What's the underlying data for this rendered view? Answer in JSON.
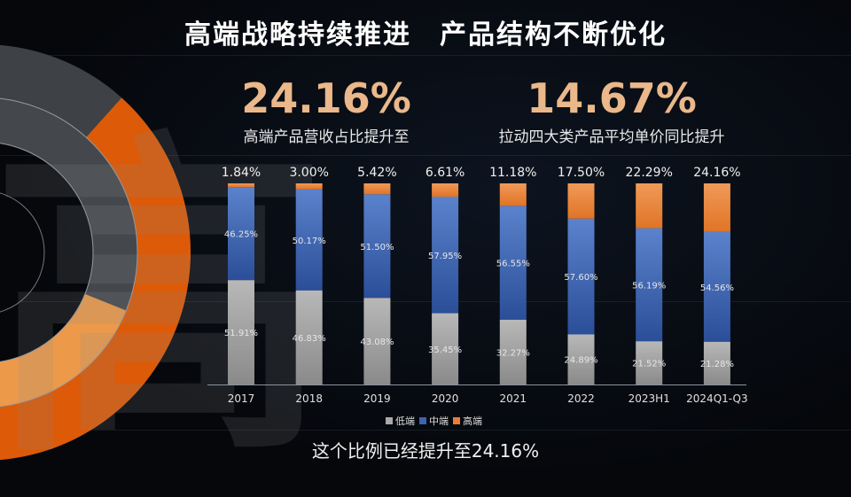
{
  "title": "高端战略持续推进　产品结构不断优化",
  "kpis": [
    {
      "value": "24.16%",
      "caption": "高端产品营收占比提升至"
    },
    {
      "value": "14.67%",
      "caption": "拉动四大类产品平均单价同比提升"
    }
  ],
  "watermark": "高",
  "footer": "这个比例已经提升至24.16%",
  "colors": {
    "low": "#a9a9a9",
    "mid": "#3d62b0",
    "high": "#e87e36"
  },
  "chart_data": {
    "type": "bar",
    "stacked": true,
    "categories": [
      "2017",
      "2018",
      "2019",
      "2020",
      "2021",
      "2022",
      "2023H1",
      "2024Q1-Q3"
    ],
    "series": [
      {
        "name": "低端",
        "values": [
          51.91,
          46.83,
          43.08,
          35.45,
          32.27,
          24.89,
          21.52,
          21.28
        ],
        "labels": [
          "51.91%",
          "46.83%",
          "43.08%",
          "35.45%",
          "32.27%",
          "24.89%",
          "21.52%",
          "21.28%"
        ]
      },
      {
        "name": "中端",
        "values": [
          46.25,
          50.17,
          51.5,
          57.95,
          56.55,
          57.6,
          56.19,
          54.56
        ],
        "labels": [
          "46.25%",
          "50.17%",
          "51.50%",
          "57.95%",
          "56.55%",
          "57.60%",
          "56.19%",
          "54.56%"
        ]
      },
      {
        "name": "高端",
        "values": [
          1.84,
          3.0,
          5.42,
          6.61,
          11.18,
          17.5,
          22.29,
          24.16
        ],
        "labels": [
          "1.84%",
          "3.00%",
          "5.42%",
          "6.61%",
          "11.18%",
          "17.50%",
          "22.29%",
          "24.16%"
        ]
      }
    ],
    "ylim": [
      0,
      100
    ],
    "grid": false,
    "legend_position": "bottom"
  }
}
